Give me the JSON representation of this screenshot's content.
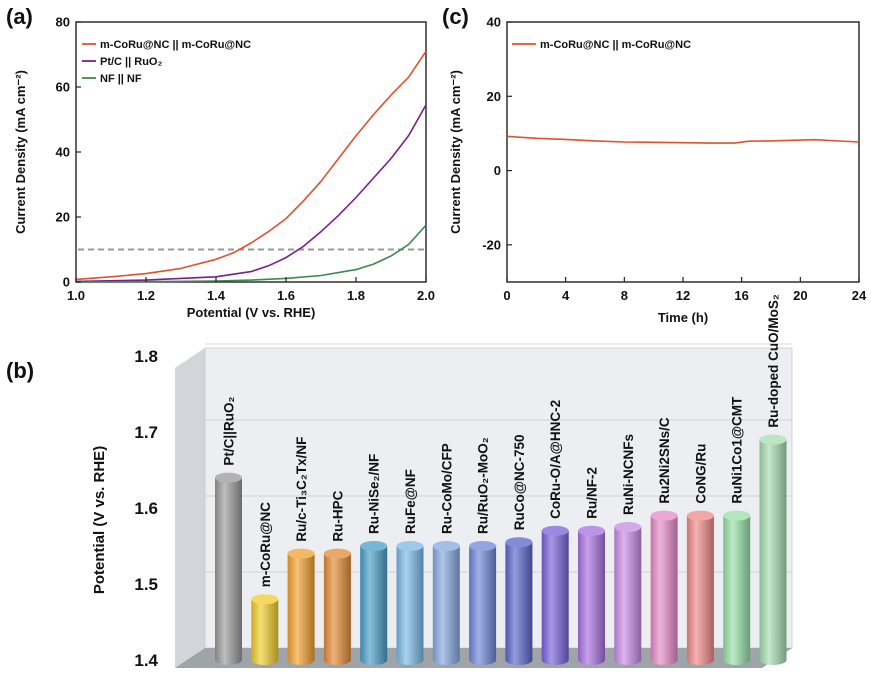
{
  "panels": {
    "a": "(a)",
    "b": "(b)",
    "c": "(c)"
  },
  "chart_data": [
    {
      "id": "a",
      "type": "line",
      "xlabel": "Potential (V vs. RHE)",
      "ylabel": "Current Density (mA cm⁻²)",
      "xlim": [
        1.0,
        2.0
      ],
      "ylim": [
        0,
        80
      ],
      "xticks": [
        "1.0",
        "1.2",
        "1.4",
        "1.6",
        "1.8",
        "2.0"
      ],
      "yticks": [
        "0",
        "20",
        "40",
        "60",
        "80"
      ],
      "reference_line": {
        "y": 10,
        "style": "dashed"
      },
      "series": [
        {
          "name": "m-CoRu@NC || m-CoRu@NC",
          "color": "#e0522e",
          "x": [
            1.0,
            1.1,
            1.2,
            1.3,
            1.4,
            1.45,
            1.5,
            1.55,
            1.6,
            1.65,
            1.7,
            1.75,
            1.8,
            1.85,
            1.9,
            1.95,
            2.0
          ],
          "y": [
            0.8,
            1.6,
            2.6,
            4.2,
            7.0,
            9.0,
            12.0,
            15.5,
            19.5,
            25.0,
            31.0,
            38.0,
            45.0,
            51.5,
            57.5,
            63.0,
            71.0
          ]
        },
        {
          "name": "Pt/C || RuO₂",
          "color": "#7b1f8c",
          "x": [
            1.0,
            1.2,
            1.4,
            1.5,
            1.55,
            1.6,
            1.65,
            1.7,
            1.75,
            1.8,
            1.85,
            1.9,
            1.95,
            2.0
          ],
          "y": [
            0.2,
            0.6,
            1.6,
            3.2,
            5.0,
            7.5,
            11.0,
            15.5,
            20.5,
            26.0,
            32.0,
            38.0,
            45.0,
            54.5
          ]
        },
        {
          "name": "NF || NF",
          "color": "#3a8a4a",
          "x": [
            1.0,
            1.2,
            1.4,
            1.5,
            1.6,
            1.7,
            1.8,
            1.85,
            1.9,
            1.95,
            2.0
          ],
          "y": [
            0.0,
            0.1,
            0.3,
            0.6,
            1.1,
            2.0,
            3.8,
            5.5,
            8.0,
            11.5,
            17.5
          ]
        }
      ]
    },
    {
      "id": "b",
      "type": "bar",
      "ylabel": "Potential (V vs. RHE)",
      "ylim": [
        1.4,
        1.8
      ],
      "yticks": [
        "1.4",
        "1.5",
        "1.6",
        "1.7",
        "1.8"
      ],
      "categories": [
        "Pt/C||RuO₂",
        "m-CoRu@NC",
        "Ru/c-Ti₃C₂Tx/NF",
        "Ru-HPC",
        "Ru-NiSe₂/NF",
        "RuFe@NF",
        "Ru-CoMo/CFP",
        "Ru/RuO₂-MoO₂",
        "RuCo@NC-750",
        "CoRu-O/A@HNC-2",
        "Ru/NF-2",
        "RuNi-NCNFs",
        "Ru2Ni2SNs/C",
        "CoNG/Ru",
        "RuNi1Co1@CMT",
        "Ru-doped CuO/MoS₂"
      ],
      "values": [
        1.64,
        1.48,
        1.54,
        1.54,
        1.55,
        1.55,
        1.55,
        1.55,
        1.555,
        1.57,
        1.57,
        1.575,
        1.59,
        1.59,
        1.59,
        1.69
      ],
      "colors": [
        "#9a9a9a",
        "#f2cc2a",
        "#f0a030",
        "#e38a36",
        "#4a9ec8",
        "#7ab8e6",
        "#86a8e0",
        "#6e86d8",
        "#5a66cc",
        "#7862da",
        "#a870e0",
        "#c88ae6",
        "#e68ac8",
        "#f08888",
        "#96e0a6",
        "#a6dcb0"
      ]
    },
    {
      "id": "c",
      "type": "line",
      "xlabel": "Time (h)",
      "ylabel": "Current Density (mA cm⁻²)",
      "xlim": [
        0,
        24
      ],
      "ylim": [
        -30,
        40
      ],
      "xticks": [
        "0",
        "4",
        "8",
        "12",
        "16",
        "20",
        "24"
      ],
      "yticks": [
        "-20",
        "0",
        "20",
        "40"
      ],
      "series": [
        {
          "name": "m-CoRu@NC || m-CoRu@NC",
          "color": "#e0522e",
          "x": [
            0,
            2,
            4,
            6,
            8,
            10,
            12,
            14,
            15.5,
            16.5,
            18,
            20,
            21,
            22,
            24
          ],
          "y": [
            9.2,
            8.7,
            8.4,
            8.0,
            7.7,
            7.6,
            7.5,
            7.4,
            7.4,
            7.9,
            8.0,
            8.2,
            8.3,
            8.1,
            7.7
          ]
        }
      ]
    }
  ]
}
